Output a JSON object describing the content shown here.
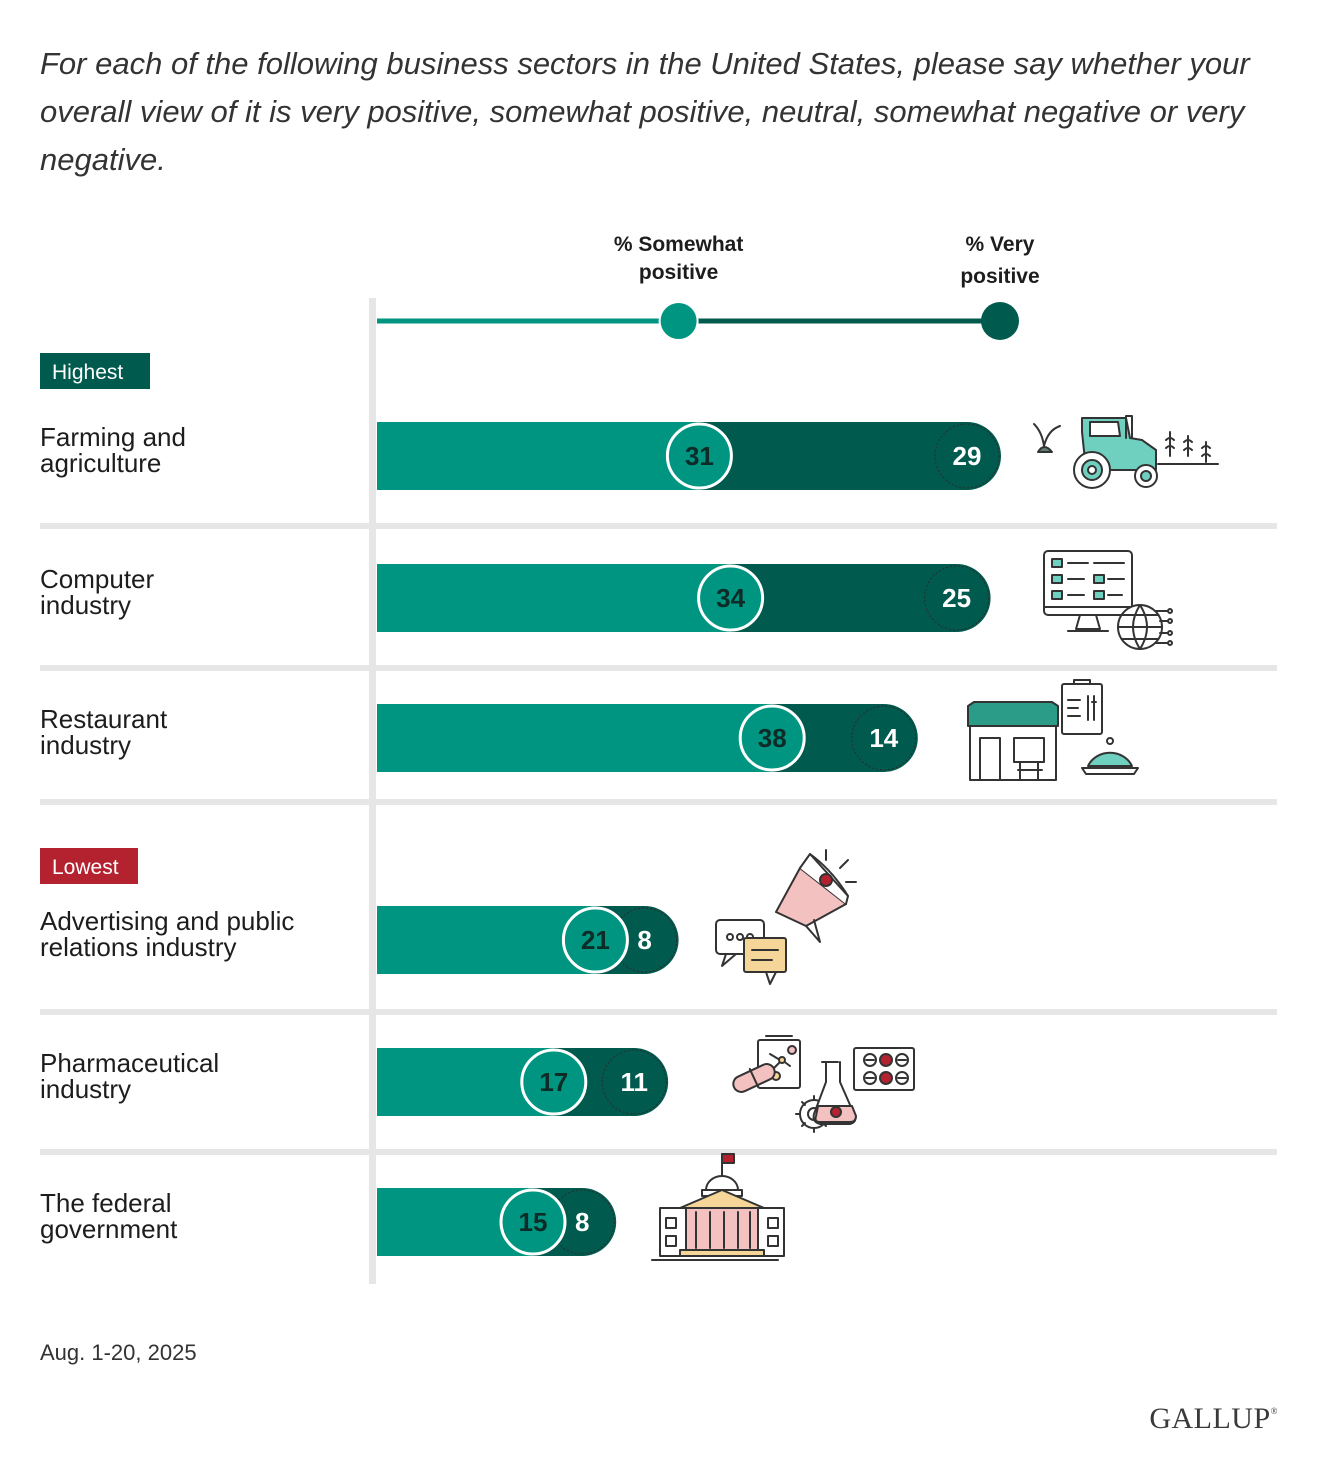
{
  "question": "For each of the following business sectors in the United States, please say whether your overall view of it is very positive, somewhat positive, neutral, somewhat negative or very negative.",
  "colors": {
    "somewhat": "#009581",
    "very": "#005a4e",
    "highest_badge": "#005a4e",
    "lowest_badge": "#b5222f",
    "divider": "#e6e6e6",
    "icon_teal": "#6fd0c0",
    "icon_pink": "#f4c1c1",
    "icon_red": "#b5222f",
    "icon_yellow": "#f6d599"
  },
  "chart_data": {
    "type": "bar",
    "stacked": true,
    "orientation": "horizontal",
    "legend": [
      {
        "name": "% Somewhat positive",
        "line1": "% Somewhat",
        "line2": "positive"
      },
      {
        "name": "% Very positive",
        "line1": "% Very",
        "line2": "positive"
      }
    ],
    "groups": [
      {
        "label": "Highest",
        "categories": [
          "Farming and agriculture",
          "Computer industry",
          "Restaurant industry"
        ]
      },
      {
        "label": "Lowest",
        "categories": [
          "Advertising and public relations industry",
          "Pharmaceutical industry",
          "The federal government"
        ]
      }
    ],
    "rows": [
      {
        "category": "Farming and agriculture",
        "line1": "Farming and",
        "line2": "agriculture",
        "somewhat": 31,
        "very": 29,
        "icon": "tractor-icon"
      },
      {
        "category": "Computer industry",
        "line1": "Computer",
        "line2": "industry",
        "somewhat": 34,
        "very": 25,
        "icon": "computer-globe-icon"
      },
      {
        "category": "Restaurant industry",
        "line1": "Restaurant",
        "line2": "industry",
        "somewhat": 38,
        "very": 14,
        "icon": "restaurant-icon"
      },
      {
        "category": "Advertising and public relations industry",
        "line1": "Advertising and public",
        "line2": "relations industry",
        "somewhat": 21,
        "very": 8,
        "icon": "megaphone-icon"
      },
      {
        "category": "Pharmaceutical industry",
        "line1": "Pharmaceutical",
        "line2": "industry",
        "somewhat": 17,
        "very": 11,
        "icon": "pharma-icon"
      },
      {
        "category": "The federal government",
        "line1": "The federal",
        "line2": "government",
        "somewhat": 15,
        "very": 8,
        "icon": "capitol-icon"
      }
    ],
    "xlim": [
      0,
      60
    ],
    "note": "Aug. 1-20, 2025"
  },
  "footer": {
    "date": "Aug. 1-20, 2025",
    "logo": "GALLUP"
  }
}
